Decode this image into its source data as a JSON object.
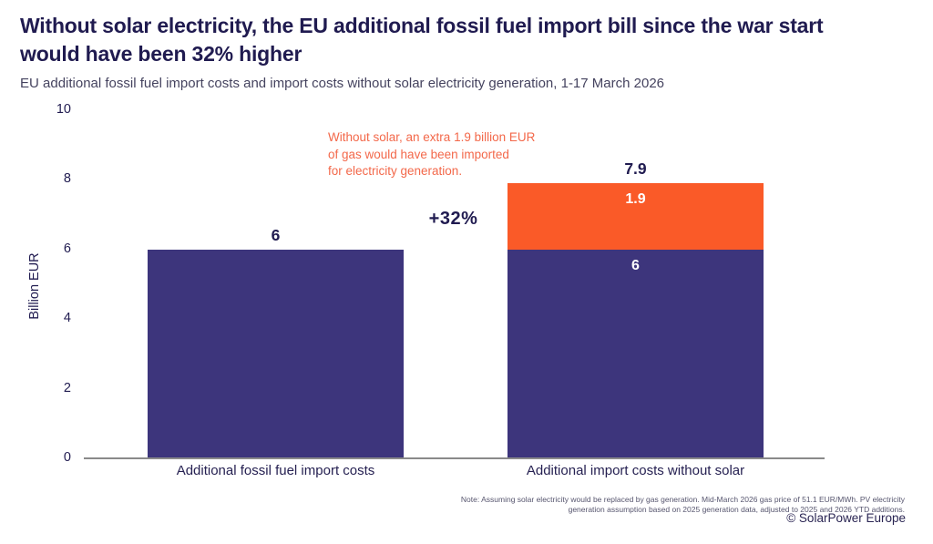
{
  "header": {
    "title": "Without solar electricity, the EU additional fossil fuel import bill since the war start\nwould have been 32% higher",
    "subtitle": "EU additional fossil fuel import costs and import costs without solar electricity generation, 1-17 March 2026"
  },
  "chart_data": {
    "type": "bar",
    "stacked": true,
    "title": "Without solar electricity, the EU additional fossil fuel import bill since the war start would have been 32% higher",
    "subtitle": "EU additional fossil fuel import costs and import costs without solar electricity generation, 1-17 March 2026",
    "xlabel": "",
    "ylabel": "Billion EUR",
    "ylim": [
      0,
      10
    ],
    "yticks": [
      0,
      2,
      4,
      6,
      8,
      10
    ],
    "grid": false,
    "legend": "none",
    "categories": [
      "Additional fossil fuel import costs",
      "Additional import costs without solar"
    ],
    "bars": [
      {
        "category": "Additional fossil fuel import costs",
        "total": 6,
        "total_label": "6",
        "segments": [
          {
            "value": 6,
            "color": "#3D357C",
            "inside_label": ""
          }
        ]
      },
      {
        "category": "Additional import costs without solar",
        "total": 7.9,
        "total_label": "7.9",
        "segments": [
          {
            "value": 6,
            "color": "#3D357C",
            "inside_label": "6"
          },
          {
            "value": 1.9,
            "color": "#FA5A28",
            "inside_label": "1.9"
          }
        ]
      }
    ],
    "annotations": [
      {
        "text": "Without solar, an extra 1.9 billion EUR\nof gas would have been imported\nfor electricity generation.",
        "color": "#F3684A"
      },
      {
        "text": "+32%",
        "color": "#201B50"
      }
    ]
  },
  "footer": {
    "note": "Note: Assuming solar electricity would be replaced by gas generation. Mid-March 2026 gas price of 51.1 EUR/MWh. PV electricity\ngeneration assumption based on 2025 generation data, adjusted to 2025 and 2026 YTD additions.",
    "copyright": "© SolarPower Europe"
  },
  "colors": {
    "bar_navy": "#3D357C",
    "bar_orange": "#FA5A28",
    "title_navy": "#201B50",
    "subtitle_gray": "#45435F",
    "annotation_orange": "#F3684A",
    "axis_line_gray": "#8A8A8A",
    "note_gray": "#57566F"
  }
}
